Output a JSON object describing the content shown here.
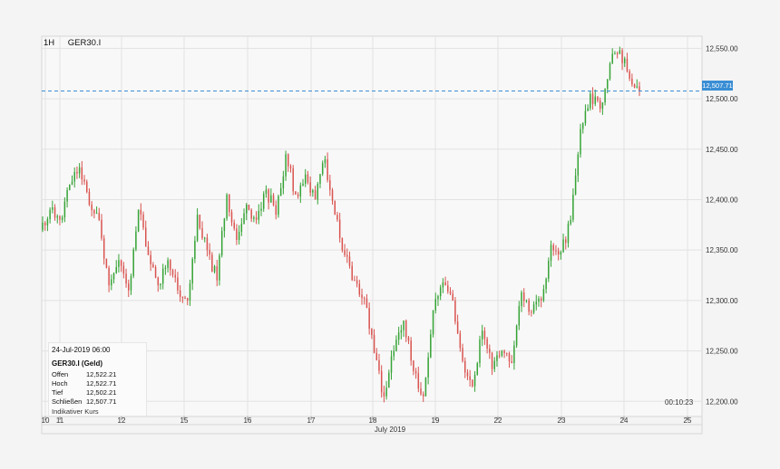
{
  "header": {
    "timeframe": "1H",
    "symbol": "GER30.I"
  },
  "info_box": {
    "date": "24-Jul-2019 06:00",
    "instrument": "GER30.I (Geld)",
    "rows": [
      {
        "key": "Offen",
        "value": "12,522.21"
      },
      {
        "key": "Hoch",
        "value": "12,522.71"
      },
      {
        "key": "Tief",
        "value": "12,502.21"
      },
      {
        "key": "Schließen",
        "value": "12,507.71"
      }
    ],
    "note": "Indikativer Kurs"
  },
  "countdown": "00:10:23",
  "current_price_label": "12,507.71",
  "colors": {
    "up": "#35a335",
    "down": "#d9534f",
    "price_line": "#3a8ed4",
    "grid": "#e2e2e2",
    "background": "#f4f4f4"
  },
  "chart_data": {
    "type": "candlestick",
    "title": "",
    "symbol": "GER30.I",
    "interval": "1H",
    "xlabel": "July 2019",
    "ylabel": "",
    "ylim": [
      12185,
      12562
    ],
    "yticks": [
      12200,
      12250,
      12300,
      12350,
      12400,
      12450,
      12500,
      12550
    ],
    "ytick_labels": [
      "12,200.00",
      "12,250.00",
      "12,300.00",
      "12,350.00",
      "12,400.00",
      "12,450.00",
      "12,500.00",
      "12,550.00"
    ],
    "x_day_labels": [
      "10",
      "11",
      "12",
      "15",
      "16",
      "17",
      "18",
      "19",
      "22",
      "23",
      "24",
      "25"
    ],
    "current_price": 12507.71,
    "grid": true,
    "candle_path": [
      [
        12370,
        12390
      ],
      [
        12390,
        12380
      ],
      [
        12380,
        12415
      ],
      [
        12415,
        12432
      ],
      [
        12432,
        12395
      ],
      [
        12395,
        12380
      ],
      [
        12380,
        12315
      ],
      [
        12315,
        12340
      ],
      [
        12340,
        12310
      ],
      [
        12310,
        12390
      ],
      [
        12390,
        12345
      ],
      [
        12345,
        12315
      ],
      [
        12315,
        12340
      ],
      [
        12340,
        12310
      ],
      [
        12310,
        12300
      ],
      [
        12300,
        12385
      ],
      [
        12385,
        12350
      ],
      [
        12350,
        12320
      ],
      [
        12320,
        12405
      ],
      [
        12405,
        12360
      ],
      [
        12360,
        12395
      ],
      [
        12395,
        12380
      ],
      [
        12380,
        12410
      ],
      [
        12410,
        12385
      ],
      [
        12385,
        12445
      ],
      [
        12445,
        12405
      ],
      [
        12405,
        12425
      ],
      [
        12425,
        12400
      ],
      [
        12400,
        12440
      ],
      [
        12440,
        12385
      ],
      [
        12385,
        12345
      ],
      [
        12345,
        12320
      ],
      [
        12320,
        12302
      ],
      [
        12302,
        12248
      ],
      [
        12248,
        12205
      ],
      [
        12205,
        12250
      ],
      [
        12250,
        12280
      ],
      [
        12280,
        12230
      ],
      [
        12230,
        12205
      ],
      [
        12205,
        12290
      ],
      [
        12290,
        12318
      ],
      [
        12318,
        12300
      ],
      [
        12300,
        12240
      ],
      [
        12240,
        12215
      ],
      [
        12215,
        12270
      ],
      [
        12270,
        12232
      ],
      [
        12232,
        12250
      ],
      [
        12250,
        12238
      ],
      [
        12238,
        12308
      ],
      [
        12308,
        12288
      ],
      [
        12288,
        12300
      ],
      [
        12300,
        12355
      ],
      [
        12355,
        12348
      ],
      [
        12348,
        12380
      ],
      [
        12380,
        12470
      ],
      [
        12470,
        12505
      ],
      [
        12505,
        12490
      ],
      [
        12490,
        12535
      ],
      [
        12535,
        12548
      ],
      [
        12548,
        12520
      ],
      [
        12520,
        12507.71
      ]
    ]
  }
}
